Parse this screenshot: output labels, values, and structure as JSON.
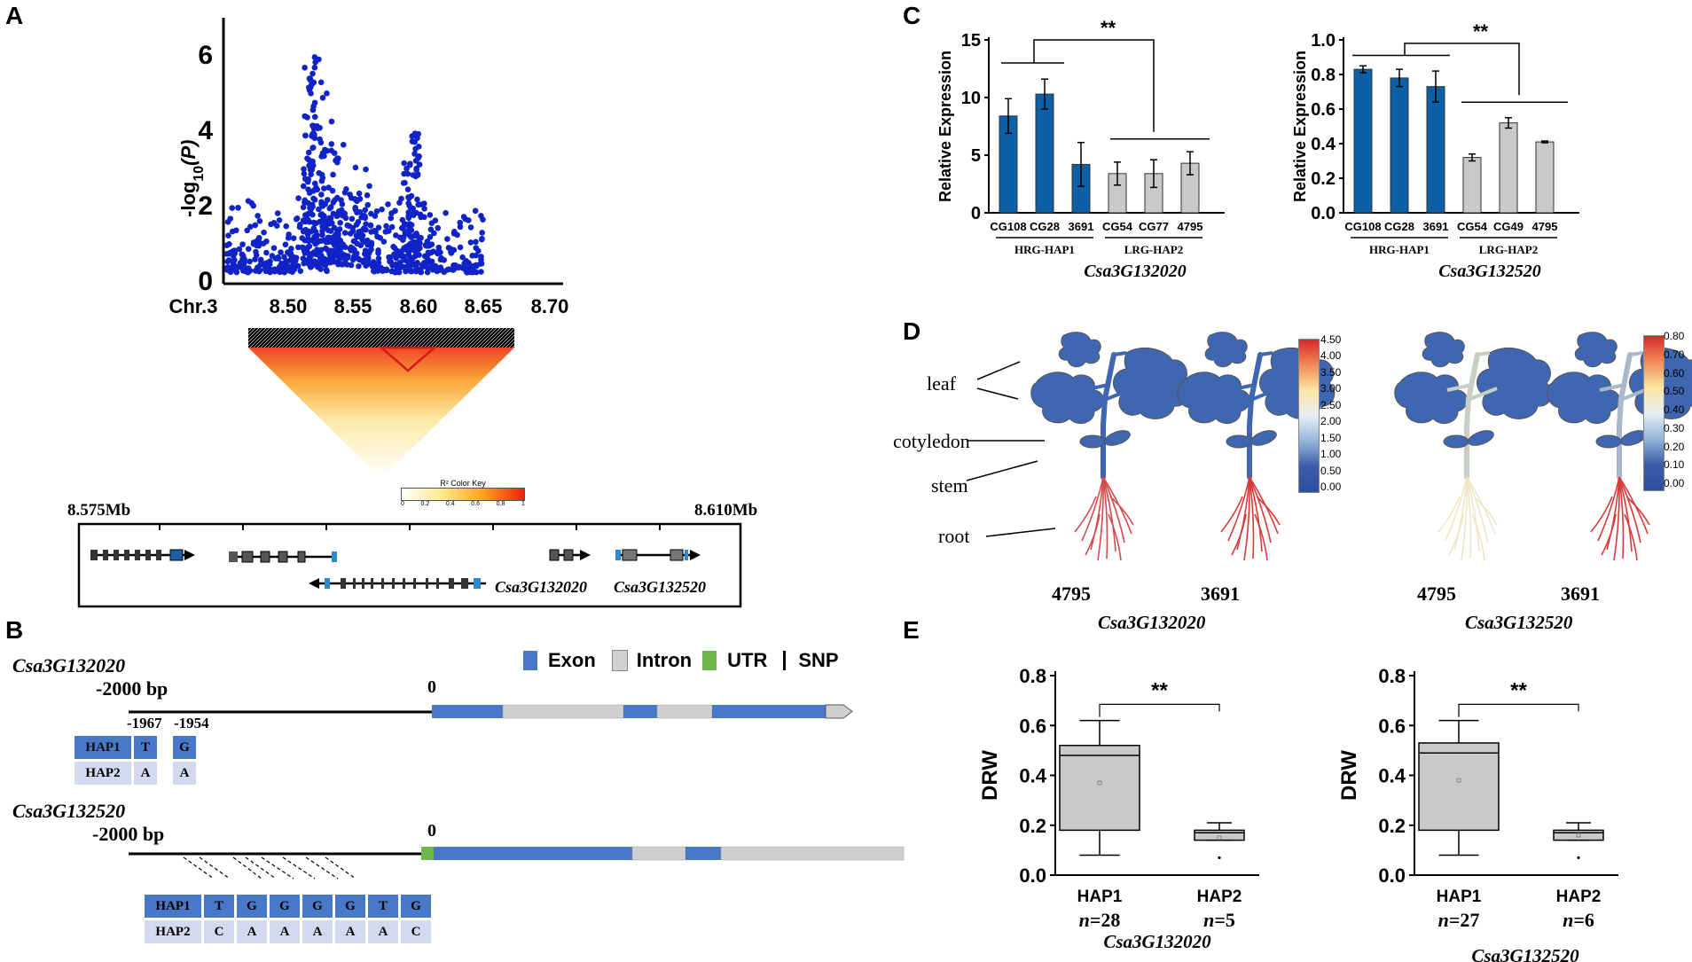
{
  "panels": {
    "a": "A",
    "b": "B",
    "c": "C",
    "d": "D",
    "e": "E"
  },
  "colors": {
    "blue": "#0d5fa6",
    "grey": "#c9c9c9",
    "exon": "#4a78c8",
    "intron": "#cfcfcf",
    "utr": "#6fb64b",
    "dot": "#1023c6",
    "hap1": "#4a78c8",
    "hap2": "#d3d9ee"
  },
  "panel_a": {
    "ylabel_main": "-log",
    "ylabel_sub": "10",
    "ylabel_p": "(P)",
    "xlabel_chr": "Chr.3",
    "xticks": [
      "8.50",
      "8.55",
      "8.60",
      "8.65",
      "8.70"
    ],
    "yticks": [
      "0",
      "2",
      "4",
      "6"
    ],
    "colorkey_title": "R² Color Key",
    "colorkey_ticks": [
      "0",
      "0.2",
      "0.4",
      "0.6",
      "0.8",
      "1"
    ],
    "region_left": "8.575Mb",
    "region_right": "8.610Mb",
    "gene1": "Csa3G132020",
    "gene2": "Csa3G132520"
  },
  "panel_b": {
    "gene1": "Csa3G132020",
    "gene2": "Csa3G132520",
    "upstream": "-2000 bp",
    "tss": "0",
    "snp_positions": "-1967",
    "snp_positions2": "-1954",
    "legend": [
      "Exon",
      "Intron",
      "UTR",
      "SNP"
    ],
    "hap1_label": "HAP1",
    "hap2_label": "HAP2",
    "g1_hap1": [
      "T",
      "G"
    ],
    "g1_hap2": [
      "A",
      "A"
    ],
    "g2_hap1": [
      "T",
      "G",
      "G",
      "G",
      "G",
      "T",
      "G"
    ],
    "g2_hap2": [
      "C",
      "A",
      "A",
      "A",
      "A",
      "A",
      "C"
    ]
  },
  "chart_data": [
    {
      "type": "bar",
      "title": "Csa3G132020",
      "ylabel": "Relative Expression",
      "ylim": [
        0,
        15
      ],
      "yticks": [
        "0",
        "5",
        "10",
        "15"
      ],
      "categories": [
        "CG108",
        "CG28",
        "3691",
        "CG54",
        "CG77",
        "4795"
      ],
      "values": [
        8.4,
        10.3,
        4.2,
        3.4,
        3.4,
        4.3
      ],
      "errors": [
        1.5,
        1.3,
        1.9,
        1.0,
        1.2,
        1.0
      ],
      "groups": [
        "HRG-HAP1",
        "LRG-HAP2"
      ],
      "significance": "**"
    },
    {
      "type": "bar",
      "title": "Csa3G132520",
      "ylabel": "Relative Expression",
      "ylim": [
        0,
        1.0
      ],
      "yticks": [
        "0.0",
        "0.2",
        "0.4",
        "0.6",
        "0.8",
        "1.0"
      ],
      "categories": [
        "CG108",
        "CG28",
        "3691",
        "CG54",
        "CG49",
        "4795"
      ],
      "values": [
        0.83,
        0.78,
        0.73,
        0.32,
        0.52,
        0.41
      ],
      "errors": [
        0.02,
        0.05,
        0.09,
        0.02,
        0.03,
        0.005
      ],
      "groups": [
        "HRG-HAP1",
        "LRG-HAP2"
      ],
      "significance": "**"
    },
    {
      "type": "box",
      "title": "Csa3G132020",
      "ylabel": "DRW",
      "ylim": [
        0.0,
        0.8
      ],
      "yticks": [
        "0.0",
        "0.2",
        "0.4",
        "0.6",
        "0.8"
      ],
      "categories": [
        "HAP1",
        "HAP2"
      ],
      "n_labels": [
        "n=28",
        "n=5"
      ],
      "boxes": [
        {
          "min": 0.08,
          "q1": 0.18,
          "median": 0.48,
          "q3": 0.52,
          "max": 0.62,
          "mean": 0.37
        },
        {
          "min": 0.14,
          "q1": 0.14,
          "median": 0.17,
          "q3": 0.18,
          "max": 0.21,
          "mean": 0.15,
          "outlier": 0.07
        }
      ],
      "significance": "**"
    },
    {
      "type": "box",
      "title": "Csa3G132520",
      "ylabel": "DRW",
      "ylim": [
        0.0,
        0.8
      ],
      "yticks": [
        "0.0",
        "0.2",
        "0.4",
        "0.6",
        "0.8"
      ],
      "categories": [
        "HAP1",
        "HAP2"
      ],
      "n_labels": [
        "n=27",
        "n=6"
      ],
      "boxes": [
        {
          "min": 0.08,
          "q1": 0.18,
          "median": 0.49,
          "q3": 0.53,
          "max": 0.62,
          "mean": 0.38
        },
        {
          "min": 0.14,
          "q1": 0.14,
          "median": 0.17,
          "q3": 0.18,
          "max": 0.21,
          "mean": 0.16,
          "outlier": 0.07
        }
      ],
      "significance": "**"
    }
  ],
  "panel_d": {
    "organs": [
      "leaf",
      "cotyledon",
      "stem",
      "root"
    ],
    "plants": [
      "4795",
      "3691",
      "4795",
      "3691"
    ],
    "gene1": "Csa3G132020",
    "gene2": "Csa3G132520",
    "scale1": [
      "4.50",
      "4.00",
      "3.50",
      "3.00",
      "2.50",
      "2.00",
      "1.50",
      "1.00",
      "0.50",
      "0.00"
    ],
    "scale2": [
      "0.80",
      "0.70",
      "0.60",
      "0.50",
      "0.40",
      "0.30",
      "0.20",
      "0.10",
      "0.00"
    ]
  }
}
